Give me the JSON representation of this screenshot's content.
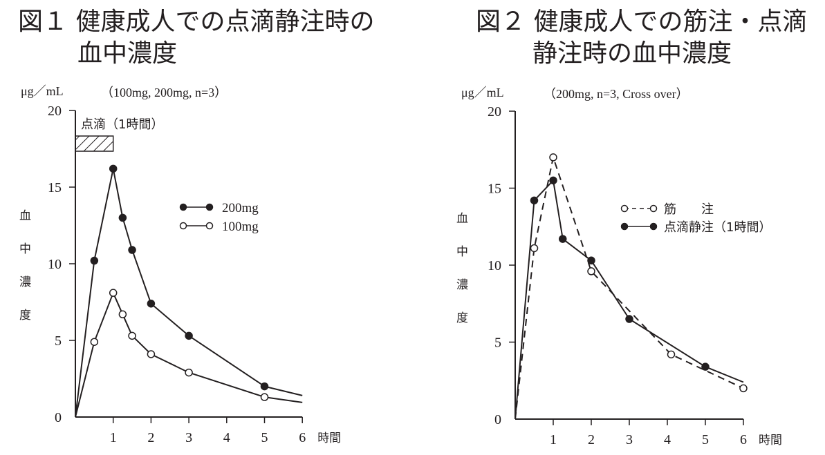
{
  "titles": {
    "fig1_line1": "図１ 健康成人での点滴静注時の",
    "fig1_line2": "血中濃度",
    "fig2_line1": "図２ 健康成人での筋注・点滴",
    "fig2_line2": "静注時の血中濃度"
  },
  "colors": {
    "ink": "#231f20",
    "background": "#ffffff"
  },
  "chart_data": [
    {
      "type": "line",
      "title": "図１ 健康成人での点滴静注時の血中濃度",
      "unit_label": "μg／mL",
      "condition": "（100mg, 200mg, n=3）",
      "xlabel": "時間",
      "ylabel": [
        "血",
        "中",
        "濃",
        "度"
      ],
      "xlim": [
        0,
        6
      ],
      "ylim": [
        0,
        20
      ],
      "xticks": [
        "1",
        "2",
        "3",
        "4",
        "5",
        "6"
      ],
      "yticks": [
        "0",
        "5",
        "10",
        "15",
        "20"
      ],
      "annotation": {
        "text": "点滴（1時間）",
        "infusion_start": 0,
        "infusion_end": 1
      },
      "legend_position": "right-middle",
      "series": [
        {
          "name": "200mg",
          "marker": "filled-circle",
          "line": "solid",
          "points": [
            [
              0,
              0
            ],
            [
              0.5,
              10.2
            ],
            [
              1,
              16.2
            ],
            [
              1.25,
              13.0
            ],
            [
              1.5,
              10.9
            ],
            [
              2,
              7.4
            ],
            [
              3,
              5.3
            ],
            [
              5,
              2.0
            ],
            [
              6,
              1.4
            ]
          ],
          "marked": [
            false,
            true,
            true,
            true,
            true,
            true,
            true,
            true,
            false
          ]
        },
        {
          "name": "100mg",
          "marker": "open-circle",
          "line": "solid",
          "points": [
            [
              0,
              0
            ],
            [
              0.5,
              4.9
            ],
            [
              1,
              8.1
            ],
            [
              1.25,
              6.7
            ],
            [
              1.5,
              5.3
            ],
            [
              2,
              4.1
            ],
            [
              3,
              2.9
            ],
            [
              5,
              1.3
            ],
            [
              6,
              0.95
            ]
          ],
          "marked": [
            false,
            true,
            true,
            true,
            true,
            true,
            true,
            true,
            false
          ]
        }
      ]
    },
    {
      "type": "line",
      "title": "図２ 健康成人での筋注・点滴静注時の血中濃度",
      "unit_label": "μg／mL",
      "condition": "（200mg, n=3, Cross over）",
      "xlabel": "時間",
      "ylabel": [
        "血",
        "中",
        "濃",
        "度"
      ],
      "xlim": [
        0,
        6
      ],
      "ylim": [
        0,
        20
      ],
      "xticks": [
        "1",
        "2",
        "3",
        "4",
        "5",
        "6"
      ],
      "yticks": [
        "0",
        "5",
        "10",
        "15",
        "20"
      ],
      "legend_position": "right-middle",
      "series": [
        {
          "name": "筋　　注",
          "marker": "open-circle",
          "line": "dashed",
          "points": [
            [
              0,
              0
            ],
            [
              0.5,
              11.1
            ],
            [
              1,
              17.0
            ],
            [
              2,
              9.6
            ],
            [
              4.1,
              4.2
            ],
            [
              6,
              2.0
            ]
          ],
          "marked": [
            false,
            true,
            true,
            true,
            true,
            true
          ]
        },
        {
          "name": "点滴静注（1時間）",
          "marker": "filled-circle",
          "line": "solid",
          "points": [
            [
              0,
              0
            ],
            [
              0.5,
              14.2
            ],
            [
              1,
              15.5
            ],
            [
              1.25,
              11.7
            ],
            [
              2,
              10.3
            ],
            [
              3,
              6.5
            ],
            [
              5,
              3.4
            ],
            [
              6,
              2.4
            ]
          ],
          "marked": [
            false,
            true,
            true,
            true,
            true,
            true,
            true,
            false
          ]
        }
      ]
    }
  ]
}
